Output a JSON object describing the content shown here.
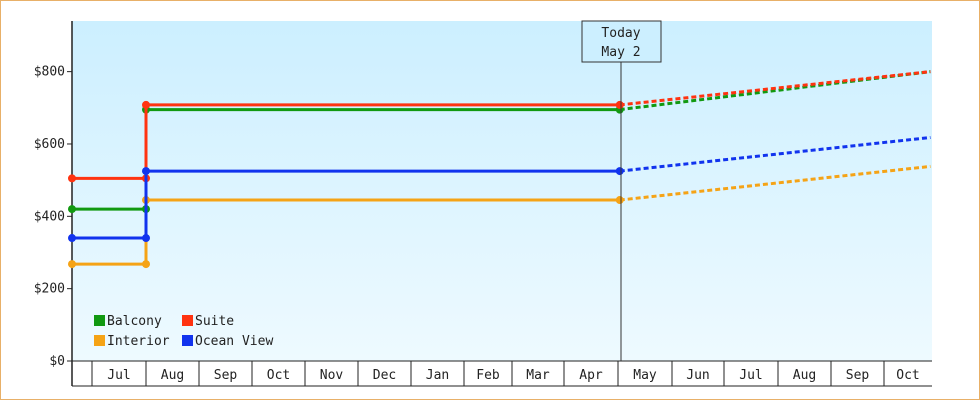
{
  "chart_data": {
    "type": "line",
    "y_ticks": [
      "$0",
      "$200",
      "$400",
      "$600",
      "$800"
    ],
    "y_tick_values": [
      0,
      200,
      400,
      600,
      800
    ],
    "ylim": [
      0,
      940
    ],
    "months": [
      "Jul",
      "Aug",
      "Sep",
      "Oct",
      "Nov",
      "Dec",
      "Jan",
      "Feb",
      "Mar",
      "Apr",
      "May",
      "Jun",
      "Jul",
      "Aug",
      "Sep",
      "Oct"
    ],
    "today_label": "Today",
    "today_date": "May 2",
    "legend": [
      "Balcony",
      "Suite",
      "Interior",
      "Ocean View"
    ],
    "series": [
      {
        "name": "Balcony",
        "color": "#119911",
        "history": [
          [
            "Jun 1",
            420
          ],
          [
            "Aug 1",
            420
          ],
          [
            "Aug 1",
            695
          ],
          [
            "May 2",
            695
          ]
        ],
        "forecast": [
          [
            "May 2",
            695
          ],
          [
            "Oct 31",
            800
          ]
        ]
      },
      {
        "name": "Suite",
        "color": "#ff3311",
        "history": [
          [
            "Jun 1",
            505
          ],
          [
            "Aug 1",
            505
          ],
          [
            "Aug 1",
            708
          ],
          [
            "May 2",
            708
          ]
        ],
        "forecast": [
          [
            "May 2",
            708
          ],
          [
            "Oct 31",
            800
          ]
        ]
      },
      {
        "name": "Interior",
        "color": "#f5a316",
        "history": [
          [
            "Jun 1",
            268
          ],
          [
            "Aug 1",
            268
          ],
          [
            "Aug 1",
            445
          ],
          [
            "May 2",
            445
          ]
        ],
        "forecast": [
          [
            "May 2",
            445
          ],
          [
            "Oct 31",
            538
          ]
        ]
      },
      {
        "name": "Ocean View",
        "color": "#1133ee",
        "history": [
          [
            "Jun 1",
            340
          ],
          [
            "Aug 1",
            340
          ],
          [
            "Aug 1",
            525
          ],
          [
            "May 2",
            525
          ]
        ],
        "forecast": [
          [
            "May 2",
            525
          ],
          [
            "Oct 31",
            618
          ]
        ]
      }
    ],
    "background_gradient": [
      "#ccefff",
      "#eefaff"
    ],
    "grid": false,
    "legend_position": "bottom-left"
  }
}
